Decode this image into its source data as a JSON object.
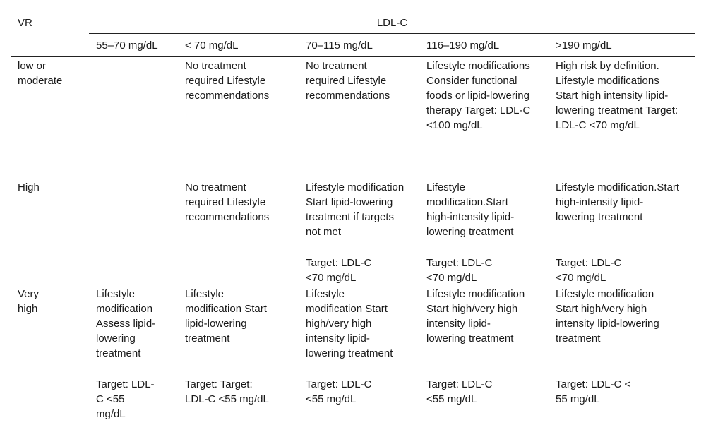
{
  "table": {
    "header": {
      "vr": "VR",
      "ldl_group": "LDL-C",
      "columns": [
        "55–70 mg/dL",
        "< 70 mg/dL",
        "70–115 mg/dL",
        "116–190 mg/dL",
        ">190 mg/dL"
      ]
    },
    "rows": [
      {
        "label": "low or moderate",
        "cells": [
          "",
          "No treatment required Lifestyle recommendations",
          "No treatment required Lifestyle recommendations",
          "Lifestyle modifications Consider functional foods or lipid-lowering therapy Target: LDL-C <100 mg/dL",
          "High risk by definition. Lifestyle modifications Start high intensity lipid-lowering treatment Target: LDL-C <70 mg/dL"
        ]
      },
      {
        "label": "High",
        "cells": [
          "",
          "No treatment required Lifestyle recommendations",
          "Lifestyle modification Start lipid-lowering treatment if targets not met",
          "Lifestyle modification.Start high-intensity lipid-lowering treatment",
          "Lifestyle modification.Start high-intensity lipid-lowering treatment"
        ],
        "targets": [
          "",
          "",
          "Target: LDL-C <70 mg/dL",
          "Target: LDL-C <70 mg/dL",
          "Target: LDL-C <70 mg/dL"
        ]
      },
      {
        "label": "Very high",
        "cells": [
          "Lifestyle modification Assess lipid-lowering treatment",
          "Lifestyle modification Start lipid-lowering treatment",
          "Lifestyle modification Start high/very high intensity lipid-lowering treatment",
          "Lifestyle modification Start high/very high intensity lipid-lowering treatment",
          "Lifestyle modification Start high/very high intensity lipid-lowering treatment"
        ],
        "targets": [
          "Target: LDL-C <55 mg/dL",
          "Target: Target: LDL-C <55 mg/dL",
          "Target: LDL-C <55 mg/dL",
          "Target: LDL-C <55 mg/dL",
          "Target: LDL-C < 55 mg/dL"
        ]
      }
    ]
  }
}
